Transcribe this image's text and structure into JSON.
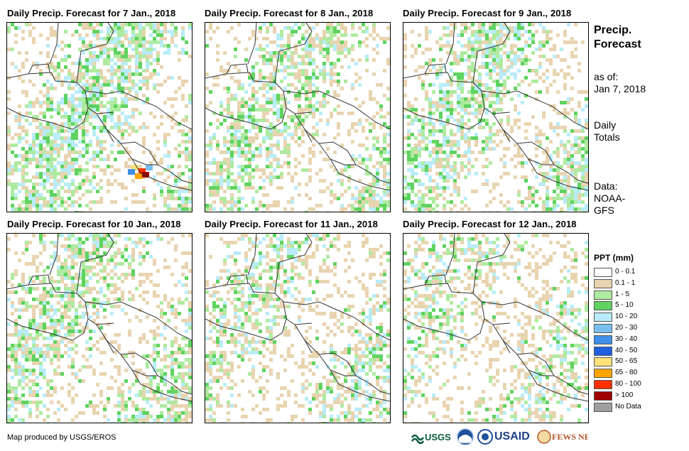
{
  "panels": [
    {
      "title": "Daily Precip. Forecast for 7 Jan., 2018",
      "seed": 7,
      "wet": 0.55,
      "heavy": 1
    },
    {
      "title": "Daily Precip. Forecast for 8 Jan., 2018",
      "seed": 8,
      "wet": 0.45,
      "heavy": 0
    },
    {
      "title": "Daily Precip. Forecast for 9 Jan., 2018",
      "seed": 9,
      "wet": 0.5,
      "heavy": 0
    },
    {
      "title": "Daily Precip. Forecast for 10 Jan., 2018",
      "seed": 10,
      "wet": 0.45,
      "heavy": 0
    },
    {
      "title": "Daily Precip. Forecast for 11 Jan., 2018",
      "seed": 11,
      "wet": 0.3,
      "heavy": 0
    },
    {
      "title": "Daily Precip. Forecast for 12 Jan., 2018",
      "seed": 12,
      "wet": 0.3,
      "heavy": 0
    }
  ],
  "sidebar": {
    "heading_line1": "Precip.",
    "heading_line2": "Forecast",
    "asof_line1": "as of:",
    "asof_line2": "Jan 7, 2018",
    "daily_line1": "Daily",
    "daily_line2": "Totals",
    "data_line1": "Data:",
    "data_line2": "NOAA-",
    "data_line3": "GFS"
  },
  "legend": {
    "title": "PPT (mm)",
    "items": [
      {
        "label": "0 - 0.1",
        "color": "#ffffff"
      },
      {
        "label": "0.1 - 1",
        "color": "#e8d4b0"
      },
      {
        "label": "1 - 5",
        "color": "#aeeaa0"
      },
      {
        "label": "5 - 10",
        "color": "#5fd35f"
      },
      {
        "label": "10 - 20",
        "color": "#b8ecf8"
      },
      {
        "label": "20 - 30",
        "color": "#78bff0"
      },
      {
        "label": "30 - 40",
        "color": "#3f8ee8"
      },
      {
        "label": "40 - 50",
        "color": "#2060e0"
      },
      {
        "label": "50 - 65",
        "color": "#ffe27a"
      },
      {
        "label": "65 - 80",
        "color": "#ffa500"
      },
      {
        "label": "80 - 100",
        "color": "#ff3000"
      },
      {
        "label": "> 100",
        "color": "#a00000"
      },
      {
        "label": "No Data",
        "color": "#a0a0a0"
      }
    ]
  },
  "footer": {
    "credit": "Map produced by USGS/EROS"
  },
  "logos": [
    {
      "name": "USGS",
      "text": "USGS"
    },
    {
      "name": "NOAA",
      "text": "NOAA"
    },
    {
      "name": "USAID",
      "text": "USAID"
    },
    {
      "name": "FEWS NET",
      "text": "FEWS NET"
    }
  ]
}
